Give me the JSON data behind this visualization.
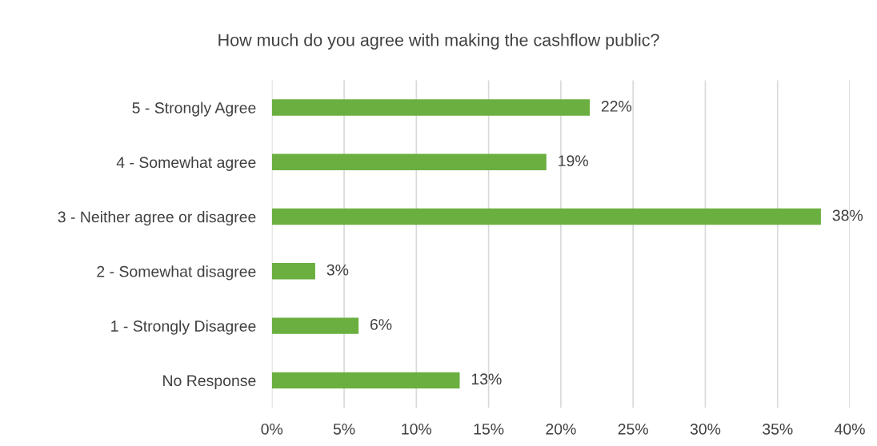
{
  "chart_data": {
    "type": "bar",
    "orientation": "horizontal",
    "title": "How much do you agree with making the cashflow public?",
    "categories": [
      "5 - Strongly Agree",
      "4 - Somewhat agree",
      "3 - Neither agree or disagree",
      "2 - Somewhat disagree",
      "1 - Strongly Disagree",
      "No Response"
    ],
    "values": [
      22,
      19,
      38,
      3,
      6,
      13
    ],
    "value_labels": [
      "22%",
      "19%",
      "38%",
      "3%",
      "6%",
      "13%"
    ],
    "color": "#6aaf3f",
    "xlim": [
      0,
      40
    ],
    "xticks": [
      {
        "value": 0,
        "label": "0%"
      },
      {
        "value": 5,
        "label": "5%"
      },
      {
        "value": 10,
        "label": "10%"
      },
      {
        "value": 15,
        "label": "15%"
      },
      {
        "value": 20,
        "label": "20%"
      },
      {
        "value": 25,
        "label": "25%"
      },
      {
        "value": 30,
        "label": "30%"
      },
      {
        "value": 35,
        "label": "35%"
      },
      {
        "value": 40,
        "label": "40%"
      }
    ],
    "grid": "x",
    "legend": false
  }
}
